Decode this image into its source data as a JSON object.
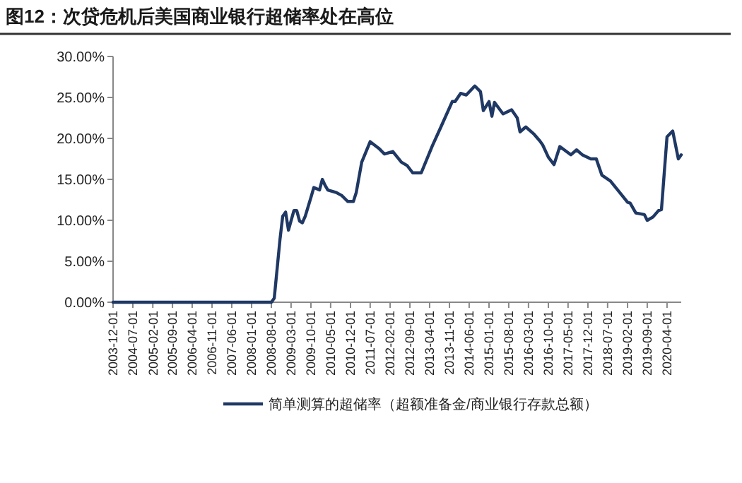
{
  "chart_data": {
    "type": "line",
    "title": "图12：次贷危机后美国商业银行超储率处在高位",
    "x": [
      "2003-12-01",
      "2008-08-01",
      "2008-09-01",
      "2008-11-01",
      "2008-12-01",
      "2009-01-01",
      "2009-02-01",
      "2009-04-01",
      "2009-05-01",
      "2009-06-01",
      "2009-07-01",
      "2009-08-01",
      "2009-10-01",
      "2009-11-01",
      "2010-01-01",
      "2010-02-01",
      "2010-03-01",
      "2010-04-01",
      "2010-07-01",
      "2010-09-01",
      "2010-11-01",
      "2011-01-01",
      "2011-02-01",
      "2011-04-01",
      "2011-07-01",
      "2011-10-01",
      "2011-12-01",
      "2012-03-01",
      "2012-06-01",
      "2012-08-01",
      "2012-10-01",
      "2013-01-01",
      "2013-05-01",
      "2013-08-01",
      "2013-12-01",
      "2014-01-01",
      "2014-03-01",
      "2014-05-01",
      "2014-08-01",
      "2014-10-01",
      "2014-11-01",
      "2015-01-01",
      "2015-02-01",
      "2015-03-01",
      "2015-06-01",
      "2015-09-01",
      "2015-11-01",
      "2015-12-01",
      "2016-02-01",
      "2016-05-01",
      "2016-07-01",
      "2016-08-01",
      "2016-10-01",
      "2016-12-01",
      "2017-02-01",
      "2017-06-01",
      "2017-08-01",
      "2017-10-01",
      "2018-01-01",
      "2018-03-01",
      "2018-05-01",
      "2018-08-01",
      "2018-11-01",
      "2019-02-01",
      "2019-03-01",
      "2019-05-01",
      "2019-08-01",
      "2019-09-01",
      "2019-11-01",
      "2020-01-01",
      "2020-02-01",
      "2020-04-01",
      "2020-06-01",
      "2020-08-01",
      "2020-09-01"
    ],
    "series": [
      {
        "name": "简单测算的超储率（超额准备金/商业银行存款总额）",
        "color": "#1f3864",
        "values": [
          0,
          0,
          0.5,
          7.6,
          10.5,
          11,
          8.8,
          11.2,
          11.2,
          9.9,
          9.7,
          10.5,
          12.8,
          14,
          13.7,
          15,
          14.3,
          13.7,
          13.4,
          13,
          12.3,
          12.3,
          13.4,
          17.1,
          19.6,
          18.8,
          18.1,
          18.4,
          17.1,
          16.7,
          15.8,
          15.8,
          19.1,
          21.4,
          24.5,
          24.5,
          25.5,
          25.3,
          26.4,
          25.7,
          23.4,
          24.5,
          22.7,
          24.4,
          23,
          23.5,
          22.5,
          20.8,
          21.4,
          20.5,
          19.7,
          19.2,
          17.7,
          16.8,
          19,
          18,
          18.6,
          18,
          17.5,
          17.5,
          15.5,
          14.8,
          13.5,
          12.2,
          12.1,
          10.9,
          10.7,
          10,
          10.4,
          11.2,
          11.3,
          20.2,
          20.9,
          17.5,
          18
        ]
      }
    ],
    "xlim": [
      "2003-12-01",
      "2020-09-01"
    ],
    "xticks": [
      {
        "value": "2003-12-01",
        "label": "2003-12-01"
      },
      {
        "value": "2004-07-01",
        "label": "2004-07-01"
      },
      {
        "value": "2005-02-01",
        "label": "2005-02-01"
      },
      {
        "value": "2005-09-01",
        "label": "2005-09-01"
      },
      {
        "value": "2006-04-01",
        "label": "2006-04-01"
      },
      {
        "value": "2006-11-01",
        "label": "2006-11-01"
      },
      {
        "value": "2007-06-01",
        "label": "2007-06-01"
      },
      {
        "value": "2008-01-01",
        "label": "2008-01-01"
      },
      {
        "value": "2008-08-01",
        "label": "2008-08-01"
      },
      {
        "value": "2009-03-01",
        "label": "2009-03-01"
      },
      {
        "value": "2009-10-01",
        "label": "2009-10-01"
      },
      {
        "value": "2010-05-01",
        "label": "2010-05-01"
      },
      {
        "value": "2010-12-01",
        "label": "2010-12-01"
      },
      {
        "value": "2011-07-01",
        "label": "2011-07-01"
      },
      {
        "value": "2012-02-01",
        "label": "2012-02-01"
      },
      {
        "value": "2012-09-01",
        "label": "2012-09-01"
      },
      {
        "value": "2013-04-01",
        "label": "2013-04-01"
      },
      {
        "value": "2013-11-01",
        "label": "2013-11-01"
      },
      {
        "value": "2014-06-01",
        "label": "2014-06-01"
      },
      {
        "value": "2015-01-01",
        "label": "2015-01-01"
      },
      {
        "value": "2015-08-01",
        "label": "2015-08-01"
      },
      {
        "value": "2016-03-01",
        "label": "2016-03-01"
      },
      {
        "value": "2016-10-01",
        "label": "2016-10-01"
      },
      {
        "value": "2017-05-01",
        "label": "2017-05-01"
      },
      {
        "value": "2017-12-01",
        "label": "2017-12-01"
      },
      {
        "value": "2018-07-01",
        "label": "2018-07-01"
      },
      {
        "value": "2019-02-01",
        "label": "2019-02-01"
      },
      {
        "value": "2019-09-01",
        "label": "2019-09-01"
      },
      {
        "value": "2020-04-01",
        "label": "2020-04-01"
      }
    ],
    "ylim": [
      0,
      30
    ],
    "yticks": [
      {
        "value": 0,
        "label": "0.00%"
      },
      {
        "value": 5,
        "label": "5.00%"
      },
      {
        "value": 10,
        "label": "10.00%"
      },
      {
        "value": 15,
        "label": "15.00%"
      },
      {
        "value": 20,
        "label": "20.00%"
      },
      {
        "value": 25,
        "label": "25.00%"
      },
      {
        "value": 30,
        "label": "30.00%"
      }
    ],
    "grid": false,
    "legend": "bottom",
    "line_style": "solid",
    "marker": "none"
  }
}
